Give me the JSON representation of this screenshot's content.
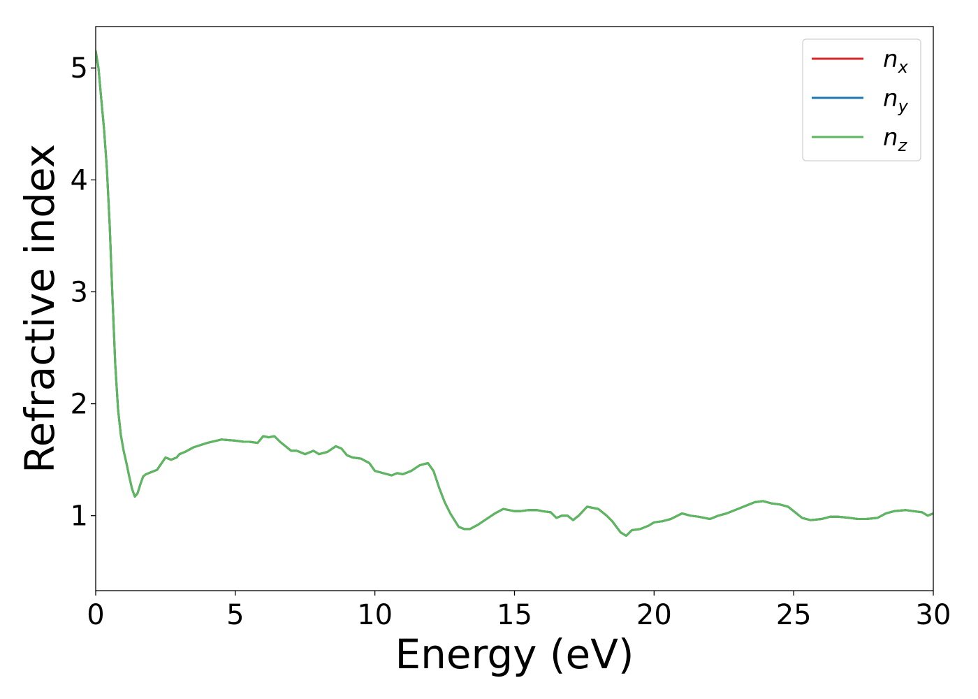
{
  "chart_data": {
    "type": "line",
    "title": "",
    "xlabel": "Energy (eV)",
    "ylabel": "Refractive index",
    "xlim": [
      0,
      30
    ],
    "ylim": [
      0.33,
      5.37
    ],
    "xticks": [
      0,
      5,
      10,
      15,
      20,
      25,
      30
    ],
    "xtick_labels": [
      "0",
      "5",
      "10",
      "15",
      "20",
      "25",
      "30"
    ],
    "yticks": [
      1,
      2,
      3,
      4,
      5
    ],
    "ytick_labels": [
      "1",
      "2",
      "3",
      "4",
      "5"
    ],
    "grid": false,
    "legend_position": "top-right",
    "x": [
      0,
      0.1,
      0.2,
      0.3,
      0.4,
      0.5,
      0.6,
      0.7,
      0.8,
      0.9,
      1.0,
      1.1,
      1.2,
      1.3,
      1.4,
      1.5,
      1.6,
      1.7,
      1.8,
      1.9,
      2.0,
      2.2,
      2.5,
      2.7,
      2.9,
      3.0,
      3.2,
      3.5,
      4.0,
      4.5,
      5.0,
      5.3,
      5.5,
      5.8,
      6.0,
      6.2,
      6.4,
      6.6,
      6.8,
      7.0,
      7.2,
      7.5,
      7.8,
      8.0,
      8.3,
      8.6,
      8.8,
      9.0,
      9.2,
      9.5,
      9.8,
      10.0,
      10.3,
      10.6,
      10.8,
      11.0,
      11.3,
      11.6,
      11.9,
      12.1,
      12.3,
      12.5,
      12.7,
      13.0,
      13.2,
      13.4,
      13.7,
      14.0,
      14.3,
      14.6,
      14.8,
      15.0,
      15.2,
      15.5,
      15.8,
      16.0,
      16.3,
      16.5,
      16.7,
      16.9,
      17.1,
      17.3,
      17.6,
      18.0,
      18.3,
      18.5,
      18.8,
      19.0,
      19.2,
      19.5,
      19.8,
      20.0,
      20.3,
      20.6,
      21.0,
      21.3,
      21.6,
      22.0,
      22.3,
      22.6,
      23.0,
      23.3,
      23.6,
      23.9,
      24.2,
      24.5,
      24.8,
      25.0,
      25.3,
      25.6,
      26.0,
      26.3,
      26.6,
      27.0,
      27.3,
      27.6,
      28.0,
      28.3,
      28.6,
      29.0,
      29.3,
      29.6,
      29.8,
      30.0
    ],
    "series": [
      {
        "name": "n_x",
        "label_base": "n",
        "label_sub": "x",
        "color": "#d62728",
        "values": [
          5.15,
          5.0,
          4.72,
          4.45,
          4.1,
          3.6,
          2.95,
          2.35,
          1.95,
          1.72,
          1.58,
          1.47,
          1.35,
          1.24,
          1.17,
          1.2,
          1.28,
          1.35,
          1.37,
          1.38,
          1.39,
          1.41,
          1.52,
          1.5,
          1.52,
          1.55,
          1.57,
          1.61,
          1.65,
          1.68,
          1.67,
          1.66,
          1.66,
          1.65,
          1.71,
          1.7,
          1.71,
          1.66,
          1.62,
          1.58,
          1.58,
          1.55,
          1.58,
          1.55,
          1.57,
          1.62,
          1.6,
          1.54,
          1.52,
          1.51,
          1.47,
          1.4,
          1.38,
          1.36,
          1.38,
          1.37,
          1.4,
          1.45,
          1.47,
          1.4,
          1.25,
          1.12,
          1.02,
          0.9,
          0.88,
          0.88,
          0.92,
          0.97,
          1.02,
          1.06,
          1.05,
          1.04,
          1.04,
          1.05,
          1.05,
          1.04,
          1.03,
          0.98,
          1.0,
          1.0,
          0.96,
          1.0,
          1.08,
          1.06,
          1.0,
          0.95,
          0.85,
          0.82,
          0.87,
          0.88,
          0.91,
          0.94,
          0.95,
          0.97,
          1.02,
          1.0,
          0.99,
          0.97,
          1.0,
          1.02,
          1.06,
          1.09,
          1.12,
          1.13,
          1.11,
          1.1,
          1.08,
          1.04,
          0.98,
          0.96,
          0.97,
          0.99,
          0.99,
          0.98,
          0.97,
          0.97,
          0.98,
          1.02,
          1.04,
          1.05,
          1.04,
          1.03,
          1.0,
          1.02
        ]
      },
      {
        "name": "n_y",
        "label_base": "n",
        "label_sub": "y",
        "color": "#1f77b4",
        "values": [
          5.15,
          5.0,
          4.72,
          4.45,
          4.1,
          3.6,
          2.95,
          2.35,
          1.95,
          1.72,
          1.58,
          1.47,
          1.35,
          1.24,
          1.17,
          1.2,
          1.28,
          1.35,
          1.37,
          1.38,
          1.39,
          1.41,
          1.52,
          1.5,
          1.52,
          1.55,
          1.57,
          1.61,
          1.65,
          1.68,
          1.67,
          1.66,
          1.66,
          1.65,
          1.71,
          1.7,
          1.71,
          1.66,
          1.62,
          1.58,
          1.58,
          1.55,
          1.58,
          1.55,
          1.57,
          1.62,
          1.6,
          1.54,
          1.52,
          1.51,
          1.47,
          1.4,
          1.38,
          1.36,
          1.38,
          1.37,
          1.4,
          1.45,
          1.47,
          1.4,
          1.25,
          1.12,
          1.02,
          0.9,
          0.88,
          0.88,
          0.92,
          0.97,
          1.02,
          1.06,
          1.05,
          1.04,
          1.04,
          1.05,
          1.05,
          1.04,
          1.03,
          0.98,
          1.0,
          1.0,
          0.96,
          1.0,
          1.08,
          1.06,
          1.0,
          0.95,
          0.85,
          0.82,
          0.87,
          0.88,
          0.91,
          0.94,
          0.95,
          0.97,
          1.02,
          1.0,
          0.99,
          0.97,
          1.0,
          1.02,
          1.06,
          1.09,
          1.12,
          1.13,
          1.11,
          1.1,
          1.08,
          1.04,
          0.98,
          0.96,
          0.97,
          0.99,
          0.99,
          0.98,
          0.97,
          0.97,
          0.98,
          1.02,
          1.04,
          1.05,
          1.04,
          1.03,
          1.0,
          1.02
        ]
      },
      {
        "name": "n_z",
        "label_base": "n",
        "label_sub": "z",
        "color": "#5cb85c",
        "values": [
          5.15,
          5.0,
          4.72,
          4.45,
          4.1,
          3.6,
          2.95,
          2.35,
          1.95,
          1.72,
          1.58,
          1.47,
          1.35,
          1.24,
          1.17,
          1.2,
          1.28,
          1.35,
          1.37,
          1.38,
          1.39,
          1.41,
          1.52,
          1.5,
          1.52,
          1.55,
          1.57,
          1.61,
          1.65,
          1.68,
          1.67,
          1.66,
          1.66,
          1.65,
          1.71,
          1.7,
          1.71,
          1.66,
          1.62,
          1.58,
          1.58,
          1.55,
          1.58,
          1.55,
          1.57,
          1.62,
          1.6,
          1.54,
          1.52,
          1.51,
          1.47,
          1.4,
          1.38,
          1.36,
          1.38,
          1.37,
          1.4,
          1.45,
          1.47,
          1.4,
          1.25,
          1.12,
          1.02,
          0.9,
          0.88,
          0.88,
          0.92,
          0.97,
          1.02,
          1.06,
          1.05,
          1.04,
          1.04,
          1.05,
          1.05,
          1.04,
          1.03,
          0.98,
          1.0,
          1.0,
          0.96,
          1.0,
          1.08,
          1.06,
          1.0,
          0.95,
          0.85,
          0.82,
          0.87,
          0.88,
          0.91,
          0.94,
          0.95,
          0.97,
          1.02,
          1.0,
          0.99,
          0.97,
          1.0,
          1.02,
          1.06,
          1.09,
          1.12,
          1.13,
          1.11,
          1.1,
          1.08,
          1.04,
          0.98,
          0.96,
          0.97,
          0.99,
          0.99,
          0.98,
          0.97,
          0.97,
          0.98,
          1.02,
          1.04,
          1.05,
          1.04,
          1.03,
          1.0,
          1.02
        ]
      }
    ]
  }
}
